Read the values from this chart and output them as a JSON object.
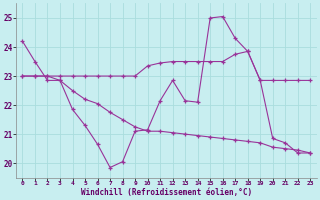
{
  "xlabel": "Windchill (Refroidissement éolien,°C)",
  "bg_color": "#c8eef0",
  "grid_color": "#aadddd",
  "line_color": "#993399",
  "xlim": [
    -0.5,
    23.5
  ],
  "ylim": [
    19.5,
    25.5
  ],
  "yticks": [
    20,
    21,
    22,
    23,
    24,
    25
  ],
  "xticks": [
    0,
    1,
    2,
    3,
    4,
    5,
    6,
    7,
    8,
    9,
    10,
    11,
    12,
    13,
    14,
    15,
    16,
    17,
    18,
    19,
    20,
    21,
    22,
    23
  ],
  "line1_x": [
    0,
    1,
    2,
    3,
    4,
    5,
    6,
    7,
    8,
    9,
    10,
    11,
    12,
    13,
    14,
    15,
    16,
    17,
    18,
    19,
    20,
    21,
    22,
    23
  ],
  "line1_y": [
    24.2,
    23.5,
    22.85,
    22.85,
    21.85,
    21.3,
    20.65,
    19.85,
    20.05,
    21.1,
    21.15,
    22.15,
    22.85,
    22.15,
    22.1,
    25.0,
    25.05,
    24.3,
    23.85,
    22.85,
    20.85,
    20.7,
    20.35,
    20.35
  ],
  "line2_x": [
    0,
    1,
    2,
    3,
    4,
    5,
    6,
    7,
    8,
    9,
    10,
    11,
    12,
    13,
    14,
    15,
    16,
    17,
    18,
    19,
    20,
    21,
    22,
    23
  ],
  "line2_y": [
    23.0,
    23.0,
    23.0,
    23.0,
    23.0,
    23.0,
    23.0,
    23.0,
    23.0,
    23.0,
    23.35,
    23.45,
    23.5,
    23.5,
    23.5,
    23.5,
    23.5,
    23.75,
    23.85,
    22.85,
    22.85,
    22.85,
    22.85,
    22.85
  ],
  "line3_x": [
    0,
    1,
    2,
    3,
    4,
    5,
    6,
    7,
    8,
    9,
    10,
    11,
    12,
    13,
    14,
    15,
    16,
    17,
    18,
    19,
    20,
    21,
    22,
    23
  ],
  "line3_y": [
    23.0,
    23.0,
    23.0,
    22.85,
    22.5,
    22.2,
    22.05,
    21.75,
    21.5,
    21.25,
    21.1,
    21.1,
    21.05,
    21.0,
    20.95,
    20.9,
    20.85,
    20.8,
    20.75,
    20.7,
    20.55,
    20.5,
    20.45,
    20.35
  ]
}
